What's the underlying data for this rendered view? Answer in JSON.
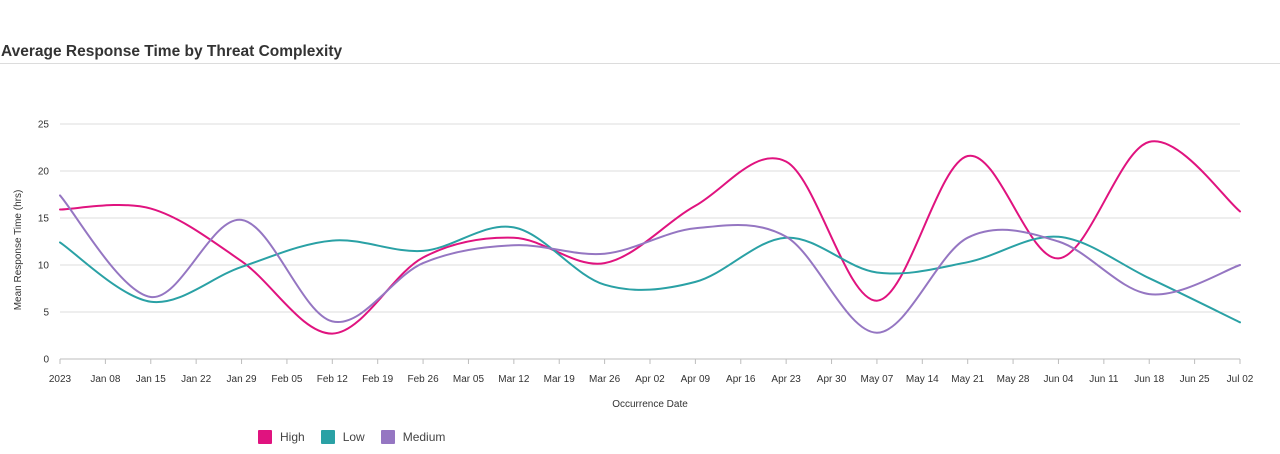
{
  "page": {
    "title": "Average Response Time by Threat Complexity"
  },
  "chart_data": {
    "type": "line",
    "title": "Average Response Time by Threat Complexity",
    "xlabel": "Occurrence Date",
    "ylabel": "Mean Response Time (hrs)",
    "ylim": [
      0,
      25
    ],
    "yticks": [
      0,
      5,
      10,
      15,
      20,
      25
    ],
    "xticks": [
      "2023",
      "Jan 08",
      "Jan 15",
      "Jan 22",
      "Jan 29",
      "Feb 05",
      "Feb 12",
      "Feb 19",
      "Feb 26",
      "Mar 05",
      "Mar 12",
      "Mar 19",
      "Mar 26",
      "Apr 02",
      "Apr 09",
      "Apr 16",
      "Apr 23",
      "Apr 30",
      "May 07",
      "May 14",
      "May 21",
      "May 28",
      "Jun 04",
      "Jun 11",
      "Jun 18",
      "Jun 25",
      "Jul 02"
    ],
    "grid": "horizontal",
    "legend_position": "bottom-left",
    "series": [
      {
        "name": "High",
        "color": "#e0137f",
        "points": [
          [
            "2023-01-01",
            15.9
          ],
          [
            "2023-01-15",
            16.0
          ],
          [
            "2023-01-29",
            10.4
          ],
          [
            "2023-02-12",
            2.7
          ],
          [
            "2023-02-26",
            10.8
          ],
          [
            "2023-03-12",
            12.9
          ],
          [
            "2023-03-26",
            10.2
          ],
          [
            "2023-04-09",
            16.3
          ],
          [
            "2023-04-23",
            21.0
          ],
          [
            "2023-05-07",
            6.2
          ],
          [
            "2023-05-21",
            21.6
          ],
          [
            "2023-06-04",
            10.7
          ],
          [
            "2023-06-18",
            23.1
          ],
          [
            "2023-07-02",
            15.7
          ]
        ]
      },
      {
        "name": "Low",
        "color": "#2aa1a5",
        "points": [
          [
            "2023-01-01",
            12.4
          ],
          [
            "2023-01-15",
            6.1
          ],
          [
            "2023-01-29",
            9.8
          ],
          [
            "2023-02-12",
            12.6
          ],
          [
            "2023-02-26",
            11.5
          ],
          [
            "2023-03-12",
            14.0
          ],
          [
            "2023-03-26",
            7.9
          ],
          [
            "2023-04-09",
            8.2
          ],
          [
            "2023-04-23",
            12.9
          ],
          [
            "2023-05-07",
            9.2
          ],
          [
            "2023-05-21",
            10.3
          ],
          [
            "2023-06-04",
            13.0
          ],
          [
            "2023-06-18",
            8.6
          ],
          [
            "2023-07-02",
            3.9
          ]
        ]
      },
      {
        "name": "Medium",
        "color": "#9576c2",
        "points": [
          [
            "2023-01-01",
            17.4
          ],
          [
            "2023-01-15",
            6.6
          ],
          [
            "2023-01-29",
            14.8
          ],
          [
            "2023-02-12",
            4.0
          ],
          [
            "2023-02-26",
            10.2
          ],
          [
            "2023-03-12",
            12.1
          ],
          [
            "2023-03-26",
            11.2
          ],
          [
            "2023-04-09",
            13.9
          ],
          [
            "2023-04-23",
            13.0
          ],
          [
            "2023-05-07",
            2.8
          ],
          [
            "2023-05-21",
            12.9
          ],
          [
            "2023-06-04",
            12.5
          ],
          [
            "2023-06-18",
            6.9
          ],
          [
            "2023-07-02",
            10.0
          ]
        ]
      }
    ]
  }
}
